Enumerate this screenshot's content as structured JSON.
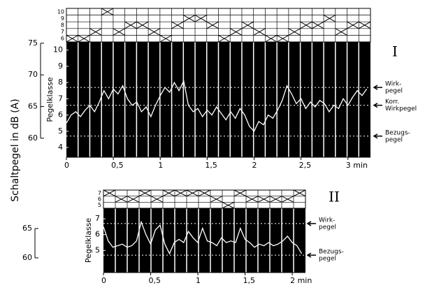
{
  "chart_data": [
    {
      "type": "line",
      "title": "I",
      "ylabel": "Pegelklasse",
      "y2label": "Schaltpegel in dB (A)",
      "background": "#000000",
      "color": "#ffffff",
      "xlim": [
        0,
        3.24
      ],
      "ylim": [
        3.4,
        10.5
      ],
      "y2lim": [
        57.0,
        75.2
      ],
      "xticks": [
        0,
        {
          "value": 0.5,
          "label": "0,5"
        },
        1,
        {
          "value": 1.5,
          "label": "1,5"
        },
        2,
        {
          "value": 2.5,
          "label": "2,5"
        },
        {
          "value": 3,
          "label": "3 min"
        }
      ],
      "yticks": [
        4,
        5,
        6,
        7,
        8,
        9,
        10
      ],
      "y2ticks": [
        60,
        65,
        70,
        75
      ],
      "x": [
        0,
        0.05,
        0.1,
        0.15,
        0.2,
        0.25,
        0.3,
        0.35,
        0.4,
        0.45,
        0.5,
        0.55,
        0.6,
        0.65,
        0.7,
        0.75,
        0.8,
        0.85,
        0.9,
        0.95,
        1.0,
        1.05,
        1.1,
        1.15,
        1.2,
        1.25,
        1.3,
        1.35,
        1.4,
        1.45,
        1.5,
        1.55,
        1.6,
        1.65,
        1.7,
        1.75,
        1.8,
        1.85,
        1.9,
        1.95,
        2.0,
        2.05,
        2.1,
        2.15,
        2.2,
        2.25,
        2.3,
        2.35,
        2.4,
        2.45,
        2.5,
        2.55,
        2.6,
        2.65,
        2.7,
        2.75,
        2.8,
        2.85,
        2.9,
        2.95,
        3.0,
        3.05,
        3.1,
        3.15,
        3.2
      ],
      "values": [
        5.5,
        6.0,
        6.2,
        5.9,
        6.3,
        6.6,
        6.2,
        6.8,
        7.5,
        7.0,
        7.6,
        7.3,
        7.8,
        7.0,
        6.6,
        6.8,
        6.2,
        6.5,
        5.9,
        6.6,
        7.2,
        7.7,
        7.4,
        8.0,
        7.5,
        8.1,
        6.6,
        6.2,
        6.4,
        5.9,
        6.3,
        6.0,
        6.5,
        6.1,
        5.7,
        6.2,
        5.8,
        6.4,
        6.0,
        5.3,
        5.0,
        5.6,
        5.4,
        6.0,
        5.8,
        6.3,
        6.9,
        7.8,
        7.3,
        6.7,
        7.0,
        6.4,
        6.8,
        6.5,
        6.9,
        6.7,
        6.2,
        6.6,
        6.4,
        7.0,
        6.6,
        7.1,
        7.5,
        7.2,
        7.6
      ],
      "matrix_rows": [
        10,
        9,
        8,
        7,
        6
      ],
      "matrix_columns": [
        6,
        6,
        7,
        10,
        7,
        8,
        8,
        7,
        6,
        8,
        9,
        9,
        8,
        6,
        7,
        8,
        7,
        6,
        6,
        7,
        8,
        8,
        9,
        7,
        8,
        8
      ],
      "references": [
        {
          "label": [
            "Wirk-",
            "pegel"
          ],
          "value": 7.7
        },
        {
          "label": [
            "Korr.",
            "Wirkpegel"
          ],
          "value": 6.6
        },
        {
          "label": [
            "Bezugs-",
            "pegel"
          ],
          "value": 4.7
        }
      ]
    },
    {
      "type": "line",
      "title": "II",
      "ylabel": "Pegelklasse",
      "background": "#000000",
      "color": "#ffffff",
      "xlim": [
        0,
        2.14
      ],
      "ylim": [
        3.6,
        7.67
      ],
      "y2lim": [
        57.5,
        68.45
      ],
      "xticks": [
        0,
        {
          "value": 0.5,
          "label": "0,5"
        },
        1,
        {
          "value": 1.5,
          "label": "1,5"
        },
        {
          "value": 2,
          "label": "2 min"
        }
      ],
      "yticks": [
        5,
        6,
        7
      ],
      "y2ticks": [
        60,
        65
      ],
      "x": [
        0,
        0.05,
        0.1,
        0.15,
        0.2,
        0.25,
        0.3,
        0.35,
        0.4,
        0.45,
        0.5,
        0.55,
        0.6,
        0.65,
        0.7,
        0.75,
        0.8,
        0.85,
        0.9,
        0.95,
        1.0,
        1.05,
        1.1,
        1.15,
        1.2,
        1.25,
        1.3,
        1.35,
        1.4,
        1.45,
        1.5,
        1.55,
        1.6,
        1.65,
        1.7,
        1.75,
        1.8,
        1.85,
        1.9,
        1.95,
        2.0,
        2.05,
        2.1
      ],
      "values": [
        6.5,
        5.6,
        5.2,
        5.3,
        5.4,
        5.2,
        5.3,
        5.6,
        6.8,
        6.0,
        5.4,
        6.3,
        6.6,
        5.4,
        4.8,
        5.5,
        5.7,
        5.5,
        6.2,
        5.8,
        5.5,
        6.4,
        5.6,
        5.5,
        5.3,
        5.8,
        5.5,
        5.6,
        5.5,
        6.4,
        5.7,
        5.5,
        5.2,
        5.4,
        5.3,
        5.5,
        5.3,
        5.4,
        5.6,
        5.9,
        5.5,
        5.3,
        4.8
      ],
      "matrix_rows": [
        7,
        6,
        5
      ],
      "matrix_columns": [
        7,
        6,
        6,
        7,
        6,
        7,
        7,
        7,
        7,
        6,
        5,
        7,
        6,
        6,
        6,
        6,
        7
      ],
      "references": [
        {
          "label": [
            "Wirk-",
            "pegel"
          ],
          "value": 6.7
        },
        {
          "label": [
            "Bezugs-",
            "pegel"
          ],
          "value": 4.7
        }
      ]
    }
  ]
}
